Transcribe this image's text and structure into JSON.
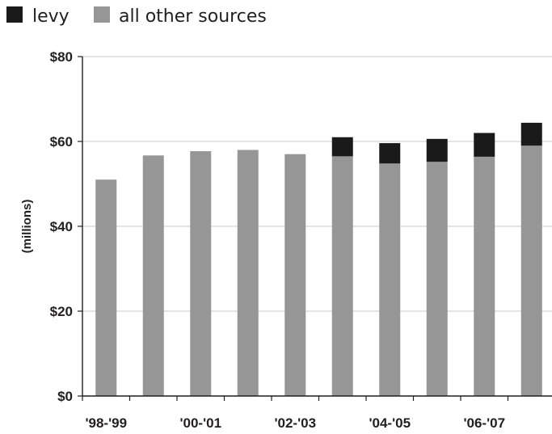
{
  "colors": {
    "levy": "#1a1a1a",
    "other": "#969696",
    "grid": "#c8c8c8",
    "axis": "#231f20"
  },
  "legend": {
    "items": [
      {
        "label": "levy",
        "color": "#1a1a1a"
      },
      {
        "label": "all other sources",
        "color": "#969696"
      }
    ]
  },
  "chart_data": {
    "type": "bar",
    "stacked": true,
    "ylabel": "(millions)",
    "ylim": [
      0,
      80
    ],
    "yticks": [
      "$0",
      "$20",
      "$40",
      "$60",
      "$80"
    ],
    "ytick_values": [
      0,
      20,
      40,
      60,
      80
    ],
    "grid": true,
    "legend_position": "top-left",
    "categories": [
      "'98-'99",
      "",
      "'00-'01",
      "",
      "'02-'03",
      "",
      "'04-'05",
      "",
      "'06-'07",
      ""
    ],
    "series": [
      {
        "name": "all other sources",
        "values": [
          51,
          56.7,
          57.7,
          58,
          57,
          56.5,
          54.8,
          55.2,
          56.4,
          59
        ]
      },
      {
        "name": "levy",
        "values": [
          0,
          0,
          0,
          0,
          0,
          4.5,
          4.8,
          5.4,
          5.6,
          5.4
        ]
      }
    ]
  }
}
